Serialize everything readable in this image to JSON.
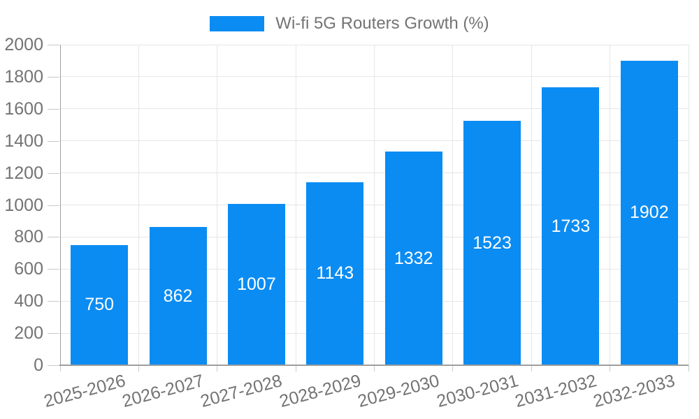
{
  "chart_data": {
    "type": "bar",
    "title": "Wi-fi 5G Routers Growth (%)",
    "categories": [
      "2025-2026",
      "2026-2027",
      "2027-2028",
      "2028-2029",
      "2029-2030",
      "2030-2031",
      "2031-2032",
      "2032-2033"
    ],
    "values": [
      750,
      862,
      1007,
      1143,
      1332,
      1523,
      1733,
      1902
    ],
    "xlabel": "",
    "ylabel": "",
    "ylim": [
      0,
      2000
    ],
    "yticks": [
      0,
      200,
      400,
      600,
      800,
      1000,
      1200,
      1400,
      1600,
      1800,
      2000
    ],
    "grid": true,
    "legend_position": "top",
    "colors": {
      "bar": "#0b8cf2",
      "value_label": "#ffffff",
      "axis_text": "#737373",
      "axis_line": "#9e9e9e",
      "gridline": "#e6e6e6",
      "tick_mark": "#c9c9c9",
      "background": "#ffffff"
    }
  }
}
